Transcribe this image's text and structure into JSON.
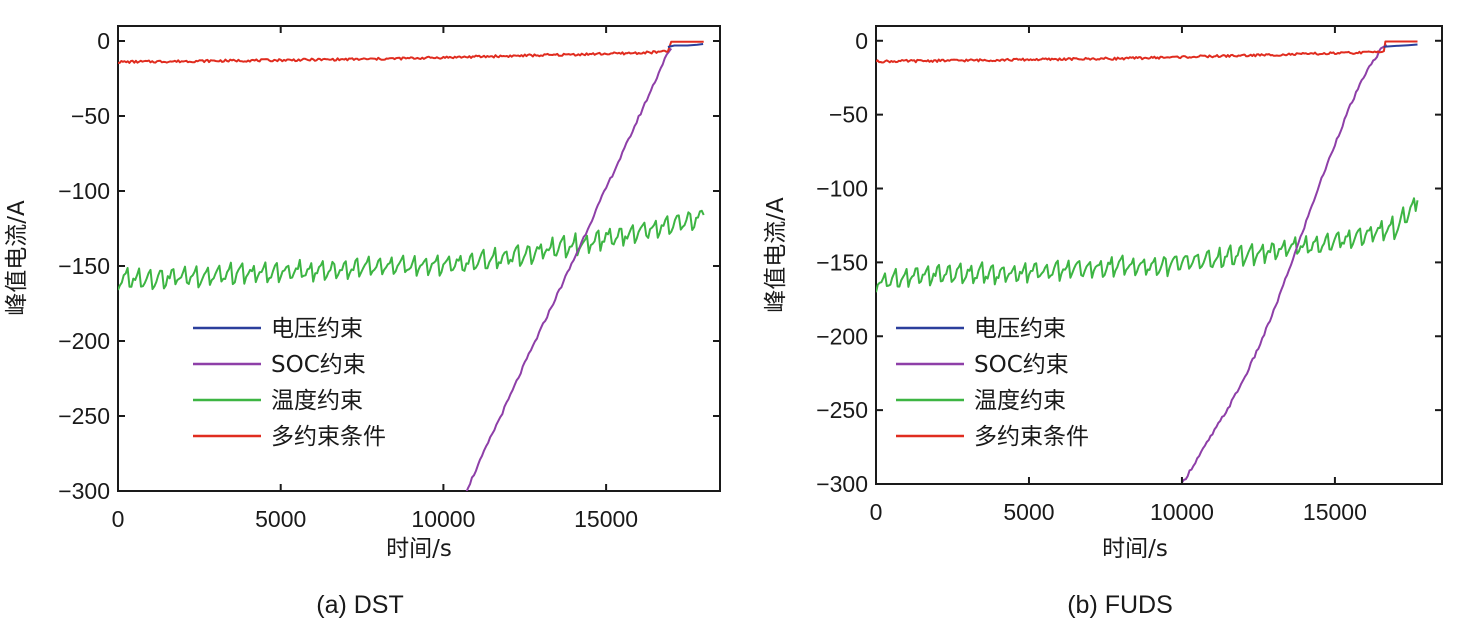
{
  "colors": {
    "voltage": "#2b3f9c",
    "soc": "#8e3fa8",
    "temperature": "#3db543",
    "multi": "#e02c1f",
    "axis": "#1a1a1a"
  },
  "chart_data": [
    {
      "type": "line",
      "caption": "(a) DST",
      "xlabel": "时间/s",
      "ylabel": "峰值电流/A",
      "xlim": [
        0,
        18500
      ],
      "ylim": [
        -300,
        10
      ],
      "xticks": [
        0,
        5000,
        10000,
        15000
      ],
      "yticks": [
        0,
        -50,
        -100,
        -150,
        -200,
        -250,
        -300
      ],
      "ytick_labels": [
        "0",
        "−50",
        "−100",
        "−150",
        "−200",
        "−250",
        "−300"
      ],
      "legend_position": "lower-left",
      "series": [
        {
          "name": "电压约束",
          "color_key": "voltage",
          "points": [
            [
              16900,
              -4
            ],
            [
              17100,
              -3
            ],
            [
              17500,
              -3
            ],
            [
              17800,
              -2.5
            ],
            [
              17980,
              -2
            ]
          ]
        },
        {
          "name": "SOC约束",
          "color_key": "soc",
          "points": [
            [
              10700,
              -300
            ],
            [
              11000,
              -286
            ],
            [
              11500,
              -262
            ],
            [
              12000,
              -239
            ],
            [
              12500,
              -215
            ],
            [
              13000,
              -192
            ],
            [
              13500,
              -169
            ],
            [
              14000,
              -146
            ],
            [
              14500,
              -122
            ],
            [
              15000,
              -98
            ],
            [
              15500,
              -75
            ],
            [
              16000,
              -51
            ],
            [
              16500,
              -27
            ],
            [
              16800,
              -12
            ],
            [
              17000,
              -5
            ]
          ]
        },
        {
          "name": "温度约束",
          "color_key": "temperature",
          "points": [
            [
              0,
              -158
            ],
            [
              1000,
              -157
            ],
            [
              2000,
              -156
            ],
            [
              3000,
              -155
            ],
            [
              4000,
              -154
            ],
            [
              5000,
              -153
            ],
            [
              6000,
              -152
            ],
            [
              7000,
              -151
            ],
            [
              8000,
              -150
            ],
            [
              9000,
              -149
            ],
            [
              10000,
              -148
            ],
            [
              11000,
              -146
            ],
            [
              12000,
              -143
            ],
            [
              13000,
              -139
            ],
            [
              14000,
              -135
            ],
            [
              15000,
              -130
            ],
            [
              16000,
              -126
            ],
            [
              17000,
              -121
            ],
            [
              18000,
              -116
            ]
          ]
        },
        {
          "name": "多约束条件",
          "color_key": "multi",
          "points": [
            [
              0,
              -14
            ],
            [
              2000,
              -13.5
            ],
            [
              4000,
              -13
            ],
            [
              6000,
              -12.5
            ],
            [
              8000,
              -12
            ],
            [
              10000,
              -11
            ],
            [
              12000,
              -10
            ],
            [
              14000,
              -9
            ],
            [
              16000,
              -8
            ],
            [
              16900,
              -7
            ],
            [
              17000,
              -0.5
            ],
            [
              18000,
              -0.5
            ]
          ]
        }
      ]
    },
    {
      "type": "line",
      "caption": "(b) FUDS",
      "xlabel": "时间/s",
      "ylabel": "峰值电流/A",
      "xlim": [
        0,
        18500
      ],
      "ylim": [
        -300,
        10
      ],
      "xticks": [
        0,
        5000,
        10000,
        15000
      ],
      "yticks": [
        0,
        -50,
        -100,
        -150,
        -200,
        -250,
        -300
      ],
      "ytick_labels": [
        "0",
        "−50",
        "−100",
        "−150",
        "−200",
        "−250",
        "−300"
      ],
      "legend_position": "lower-left",
      "series": [
        {
          "name": "电压约束",
          "color_key": "voltage",
          "points": [
            [
              16600,
              -4
            ],
            [
              17000,
              -3.5
            ],
            [
              17400,
              -3
            ],
            [
              17700,
              -2.5
            ]
          ]
        },
        {
          "name": "SOC约束",
          "color_key": "soc",
          "points": [
            [
              10000,
              -300
            ],
            [
              10500,
              -283
            ],
            [
              11000,
              -266
            ],
            [
              11500,
              -249
            ],
            [
              12000,
              -230
            ],
            [
              12500,
              -208
            ],
            [
              13000,
              -183
            ],
            [
              13500,
              -155
            ],
            [
              14000,
              -126
            ],
            [
              14500,
              -97
            ],
            [
              15000,
              -70
            ],
            [
              15500,
              -44
            ],
            [
              16000,
              -22
            ],
            [
              16500,
              -6
            ],
            [
              16700,
              -3
            ]
          ]
        },
        {
          "name": "温度约束",
          "color_key": "temperature",
          "points": [
            [
              0,
              -162
            ],
            [
              1000,
              -159
            ],
            [
              2000,
              -157
            ],
            [
              3000,
              -156
            ],
            [
              4000,
              -157
            ],
            [
              5000,
              -155
            ],
            [
              6000,
              -154
            ],
            [
              7000,
              -153
            ],
            [
              8000,
              -151
            ],
            [
              9000,
              -152
            ],
            [
              10000,
              -149
            ],
            [
              11000,
              -147
            ],
            [
              12000,
              -144
            ],
            [
              13000,
              -141
            ],
            [
              14000,
              -138
            ],
            [
              15000,
              -135
            ],
            [
              16000,
              -130
            ],
            [
              17000,
              -125
            ],
            [
              17700,
              -108
            ]
          ]
        },
        {
          "name": "多约束条件",
          "color_key": "multi",
          "points": [
            [
              0,
              -14
            ],
            [
              2000,
              -13.5
            ],
            [
              4000,
              -13
            ],
            [
              6000,
              -12.5
            ],
            [
              8000,
              -12
            ],
            [
              10000,
              -11
            ],
            [
              12000,
              -10
            ],
            [
              14000,
              -9
            ],
            [
              16000,
              -8
            ],
            [
              16600,
              -7
            ],
            [
              16650,
              -0.5
            ],
            [
              17700,
              -0.5
            ]
          ]
        }
      ]
    }
  ]
}
